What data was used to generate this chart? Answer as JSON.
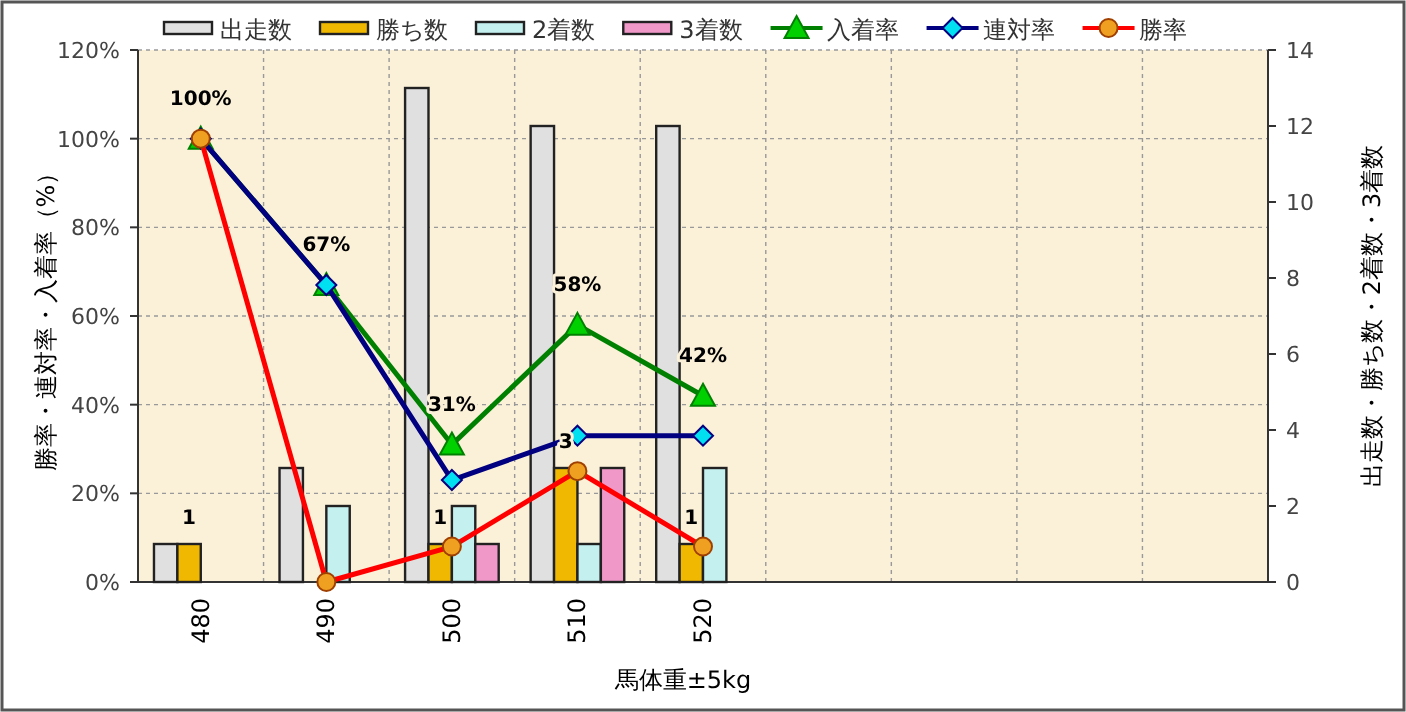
{
  "chart_data": {
    "type": "bar",
    "categories": [
      "480",
      "490",
      "500",
      "510",
      "520",
      null,
      null,
      null,
      null
    ],
    "xlabel": "馬体重±5kg",
    "ylabel": "勝率・連対率・入着率（%）",
    "y2label": "出走数・勝ち数・2着数・3着数",
    "ylim": [
      0,
      120
    ],
    "yticks": [
      {
        "value": 0,
        "label": "0%"
      },
      {
        "value": 20,
        "label": "20%"
      },
      {
        "value": 40,
        "label": "40%"
      },
      {
        "value": 60,
        "label": "60%"
      },
      {
        "value": 80,
        "label": "80%"
      },
      {
        "value": 100,
        "label": "100%"
      },
      {
        "value": 120,
        "label": "120%"
      }
    ],
    "y2lim": [
      0,
      14
    ],
    "y2ticks": [
      0,
      2,
      4,
      6,
      8,
      10,
      12,
      14
    ],
    "grid": true,
    "legend": "top",
    "series": [
      {
        "name": "出走数",
        "axis": "y2",
        "color": "#e0e0e0",
        "values": [
          1,
          3,
          13,
          12,
          12,
          null,
          null,
          null,
          null
        ]
      },
      {
        "name": "勝ち数",
        "axis": "y2",
        "color": "#f0b800",
        "values": [
          1,
          null,
          1,
          3,
          1,
          null,
          null,
          null,
          null
        ],
        "value_labels": [
          "1",
          null,
          "1",
          "3",
          "1",
          null,
          null,
          null,
          null
        ]
      },
      {
        "name": "2着数",
        "axis": "y2",
        "color": "#c4f0f0",
        "values": [
          null,
          2,
          2,
          1,
          3,
          null,
          null,
          null,
          null
        ]
      },
      {
        "name": "3着数",
        "axis": "y2",
        "color": "#f098c8",
        "values": [
          null,
          null,
          1,
          3,
          null,
          null,
          null,
          null,
          null
        ]
      },
      {
        "name": "入着率",
        "type": "line",
        "color": "#008000",
        "marker": "triangle",
        "values": [
          100,
          67,
          31,
          58,
          42,
          null,
          null,
          null,
          null
        ],
        "value_labels": [
          "100%",
          "67%",
          "31%",
          "58%",
          "42%",
          null,
          null,
          null,
          null
        ]
      },
      {
        "name": "連対率",
        "type": "line",
        "color": "#000080",
        "marker": "diamond",
        "values": [
          100,
          67,
          23,
          33,
          33,
          null,
          null,
          null,
          null
        ]
      },
      {
        "name": "勝率",
        "type": "line",
        "color": "#ff0000",
        "marker": "circle",
        "values": [
          100,
          0,
          8,
          25,
          8,
          null,
          null,
          null,
          null
        ]
      }
    ]
  }
}
